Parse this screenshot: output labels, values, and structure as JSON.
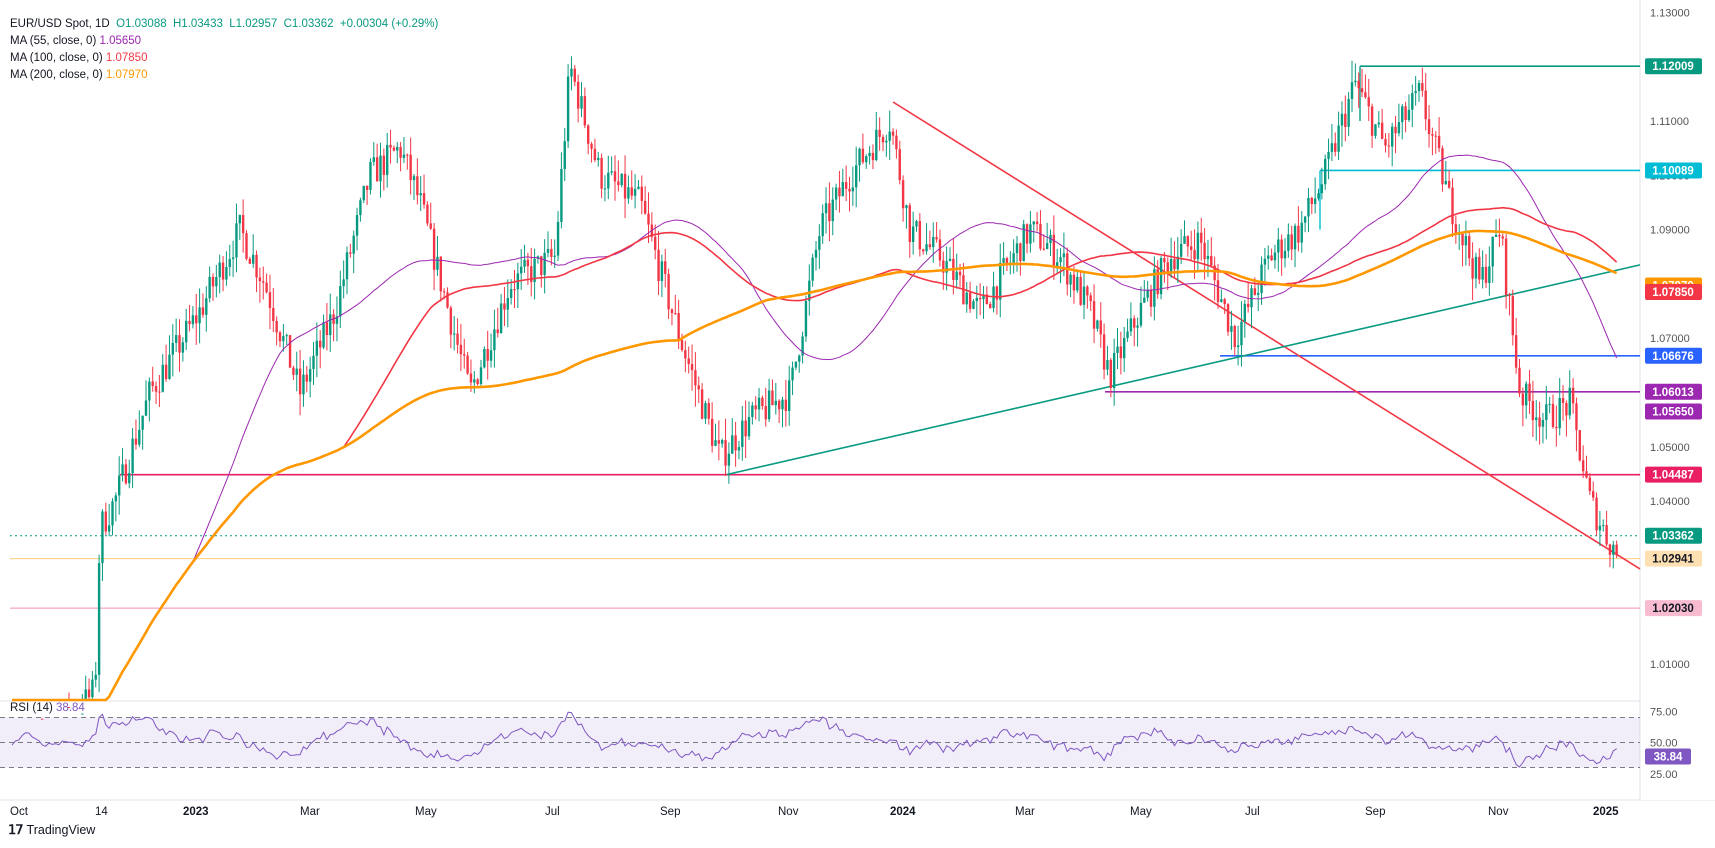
{
  "header": {
    "symbol": "EUR/USD Spot, 1D",
    "open": "O1.03088",
    "high": "H1.03433",
    "low": "L1.02957",
    "close": "C1.03362",
    "change": "+0.00304 (+0.29%)"
  },
  "indicators": [
    {
      "label": "MA (55, close, 0)",
      "value": "1.05650",
      "color": "#9c27b0"
    },
    {
      "label": "MA (100, close, 0)",
      "value": "1.07850",
      "color": "#f23645"
    },
    {
      "label": "MA (200, close, 0)",
      "value": "1.07970",
      "color": "#ff9800"
    }
  ],
  "rsi": {
    "label": "RSI (14)",
    "value": "38.84",
    "color": "#7e57c2"
  },
  "brand": "TradingView",
  "chart_data": {
    "type": "candlestick",
    "x_axis_labels": [
      "Oct",
      "14",
      "2023",
      "Mar",
      "May",
      "Jul",
      "Sep",
      "Nov",
      "2024",
      "Mar",
      "May",
      "Jul",
      "Sep",
      "Nov",
      "2025"
    ],
    "y_axis_labels": [
      "1.13000",
      "1.11000",
      "1.10000",
      "1.09000",
      "1.07000",
      "1.05000",
      "1.04000",
      "1.01000"
    ],
    "ylim": [
      1.005,
      1.13
    ],
    "price_labels": [
      {
        "value": "1.12009",
        "color": "#089981",
        "text_color": "#ffffff"
      },
      {
        "value": "1.10089",
        "color": "#00bcd4",
        "text_color": "#ffffff"
      },
      {
        "value": "1.07970",
        "color": "#ff9800",
        "text_color": "#ffffff"
      },
      {
        "value": "1.07850",
        "color": "#f23645",
        "text_color": "#ffffff"
      },
      {
        "value": "1.06676",
        "color": "#2962ff",
        "text_color": "#ffffff"
      },
      {
        "value": "1.06013",
        "color": "#9c27b0",
        "text_color": "#ffffff"
      },
      {
        "value": "1.05650",
        "color": "#9c27b0",
        "text_color": "#ffffff"
      },
      {
        "value": "1.04487",
        "color": "#e91e63",
        "text_color": "#ffffff"
      },
      {
        "value": "1.03362",
        "color": "#089981",
        "text_color": "#ffffff"
      },
      {
        "value": "1.02941",
        "color": "#ffe0b2",
        "text_color": "#131722"
      },
      {
        "value": "1.02030",
        "color": "#f8bbd0",
        "text_color": "#131722"
      }
    ],
    "rsi_axis_labels": [
      "75.00",
      "50.00",
      "25.00"
    ],
    "rsi_levels": [
      70,
      50,
      30
    ],
    "rsi_last": 38.84,
    "rsi_range": [
      20,
      80
    ],
    "ma_colors": {
      "ma55": "#9c27b0",
      "ma100": "#f23645",
      "ma200": "#ff9800"
    },
    "candle_colors": {
      "up": "#089981",
      "down": "#f23645"
    }
  }
}
